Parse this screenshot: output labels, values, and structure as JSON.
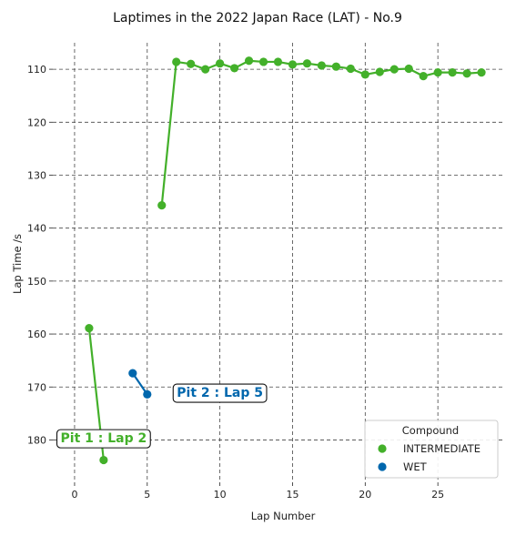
{
  "chart_data": {
    "type": "scatter",
    "title": "Laptimes in the 2022 Japan Race (LAT) - No.9",
    "xlabel": "Lap Number",
    "ylabel": "Lap Time /s",
    "xlim": [
      -1.5,
      29.5
    ],
    "ylim": [
      188,
      105
    ],
    "y_inverted": true,
    "xticks": [
      0,
      5,
      10,
      15,
      20,
      25
    ],
    "yticks": [
      110,
      120,
      130,
      140,
      150,
      160,
      170,
      180
    ],
    "grid": true,
    "legend_position": "bottom-right",
    "legend_title": "Compound",
    "series": [
      {
        "name": "INTERMEDIATE",
        "color": "#43b02a",
        "segments": [
          {
            "x": [
              1,
              2
            ],
            "y": [
              158.9,
              183.8
            ]
          },
          {
            "x": [
              6,
              7,
              8,
              9,
              10,
              11,
              12,
              13,
              14,
              15,
              16,
              17,
              18,
              19,
              20,
              21,
              22,
              23,
              24,
              25,
              26,
              27,
              28
            ],
            "y": [
              135.7,
              108.6,
              109.0,
              110.0,
              108.9,
              109.8,
              108.4,
              108.6,
              108.6,
              109.1,
              108.9,
              109.3,
              109.5,
              109.9,
              111.0,
              110.5,
              110.0,
              109.9,
              111.3,
              110.6,
              110.6,
              110.8,
              110.6
            ]
          }
        ]
      },
      {
        "name": "WET",
        "color": "#0067ad",
        "segments": [
          {
            "x": [
              4,
              5
            ],
            "y": [
              167.4,
              171.4
            ]
          }
        ]
      }
    ],
    "annotations": [
      {
        "text": "Pit 1 : Lap 2",
        "x": 2,
        "y": 179.6,
        "color": "#43b02a"
      },
      {
        "text": "Pit 2 : Lap 5",
        "x": 10,
        "y": 171.0,
        "color": "#0067ad"
      }
    ]
  }
}
